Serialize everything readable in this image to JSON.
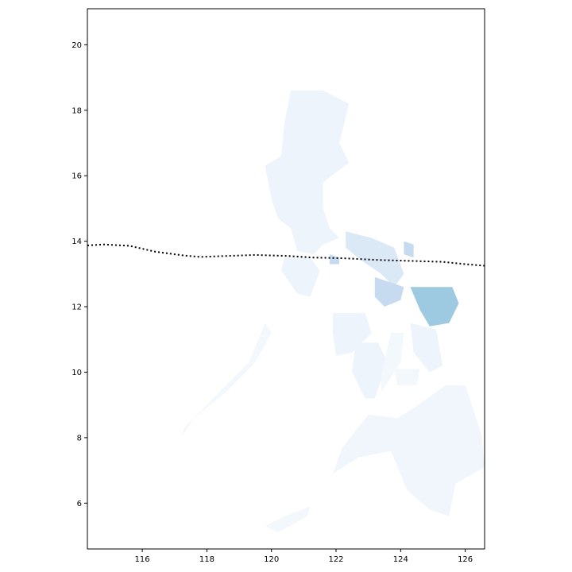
{
  "chart_data": {
    "type": "map",
    "xlim": [
      114.3,
      126.6
    ],
    "ylim": [
      4.6,
      21.1
    ],
    "x_ticks": [
      {
        "value": 116,
        "label": "116"
      },
      {
        "value": 118,
        "label": "118"
      },
      {
        "value": 120,
        "label": "120"
      },
      {
        "value": 122,
        "label": "122"
      },
      {
        "value": 124,
        "label": "124"
      },
      {
        "value": 126,
        "label": "126"
      }
    ],
    "y_ticks": [
      {
        "value": 6,
        "label": "6"
      },
      {
        "value": 8,
        "label": "8"
      },
      {
        "value": 10,
        "label": "10"
      },
      {
        "value": 12,
        "label": "12"
      },
      {
        "value": 14,
        "label": "14"
      },
      {
        "value": 16,
        "label": "16"
      },
      {
        "value": 18,
        "label": "18"
      },
      {
        "value": 20,
        "label": "20"
      }
    ],
    "grid": false,
    "colormap": "Blues",
    "track_line": {
      "style": "dotted",
      "color": "#000000",
      "points": [
        [
          114.3,
          13.87
        ],
        [
          114.8,
          13.9
        ],
        [
          115.6,
          13.86
        ],
        [
          116.4,
          13.68
        ],
        [
          117.3,
          13.56
        ],
        [
          117.8,
          13.52
        ],
        [
          118.6,
          13.55
        ],
        [
          119.5,
          13.58
        ],
        [
          120.5,
          13.55
        ],
        [
          121.3,
          13.5
        ],
        [
          122.2,
          13.48
        ],
        [
          123.2,
          13.43
        ],
        [
          124.2,
          13.4
        ],
        [
          125.3,
          13.37
        ],
        [
          126.0,
          13.3
        ],
        [
          126.6,
          13.25
        ]
      ]
    }
  }
}
